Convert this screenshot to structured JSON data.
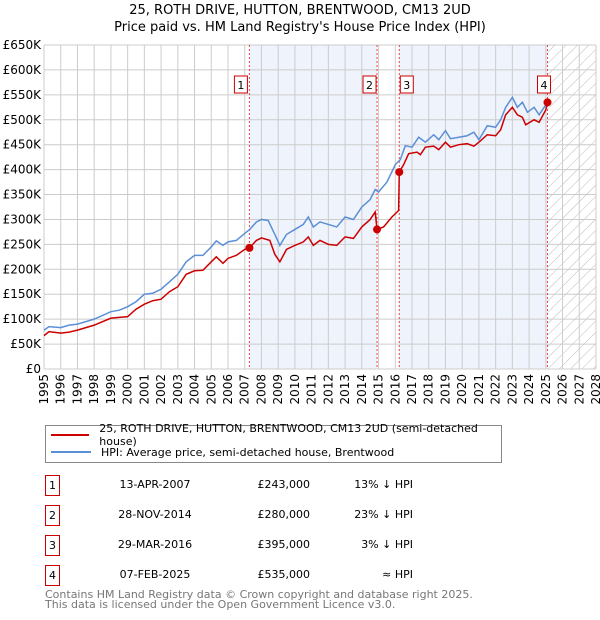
{
  "chart_data": {
    "type": "line",
    "title": "25, ROTH DRIVE, HUTTON, BRENTWOOD, CM13 2UD",
    "subtitle": "Price paid vs. HM Land Registry's House Price Index (HPI)",
    "xlim": [
      1995,
      2028
    ],
    "ylim": [
      0,
      650000
    ],
    "yticks": [
      0,
      50000,
      100000,
      150000,
      200000,
      250000,
      300000,
      350000,
      400000,
      450000,
      500000,
      550000,
      600000,
      650000
    ],
    "ytick_labels": [
      "£0",
      "£50K",
      "£100K",
      "£150K",
      "£200K",
      "£250K",
      "£300K",
      "£350K",
      "£400K",
      "£450K",
      "£500K",
      "£550K",
      "£600K",
      "£650K"
    ],
    "xtick_labels": [
      "1995",
      "1996",
      "1997",
      "1998",
      "1999",
      "2000",
      "2001",
      "2002",
      "2003",
      "2004",
      "2005",
      "2006",
      "2007",
      "2008",
      "2009",
      "2010",
      "2011",
      "2012",
      "2013",
      "2014",
      "2015",
      "2016",
      "2017",
      "2018",
      "2019",
      "2020",
      "2021",
      "2022",
      "2023",
      "2024",
      "2025",
      "2026",
      "2027",
      "2028"
    ],
    "grid": true,
    "shaded_periods": [
      [
        2007.28,
        2014.91
      ],
      [
        2016.24,
        2025.1
      ]
    ],
    "forecast_hatch_from": 2025.1,
    "series": [
      {
        "name": "25, ROTH DRIVE, HUTTON, BRENTWOOD, CM13 2UD (semi-detached house)",
        "color": "#cc0000",
        "x": [
          1995,
          1995.3,
          1996,
          1996.5,
          1997,
          1998,
          1999,
          2000,
          2000.5,
          2001,
          2001.5,
          2002,
          2002.5,
          2003,
          2003.5,
          2004,
          2004.5,
          2005,
          2005.3,
          2005.7,
          2006,
          2006.5,
          2007,
          2007.28,
          2007.7,
          2008,
          2008.5,
          2008.8,
          2009.1,
          2009.5,
          2010,
          2010.5,
          2010.8,
          2011.1,
          2011.5,
          2012,
          2012.5,
          2013,
          2013.5,
          2014,
          2014.5,
          2014.8,
          2014.91,
          2015.3,
          2015.8,
          2016.2,
          2016.24,
          2016.5,
          2016.8,
          2017.3,
          2017.5,
          2017.8,
          2018.3,
          2018.6,
          2019,
          2019.3,
          2019.8,
          2020.3,
          2020.7,
          2021,
          2021.5,
          2022,
          2022.3,
          2022.6,
          2023,
          2023.3,
          2023.6,
          2023.8,
          2024.3,
          2024.6,
          2025,
          2025.1
        ],
        "y": [
          67000,
          75000,
          72000,
          74000,
          78000,
          88000,
          102000,
          105000,
          120000,
          130000,
          137000,
          140000,
          155000,
          165000,
          190000,
          197000,
          198000,
          215000,
          225000,
          212000,
          222000,
          228000,
          240000,
          243000,
          258000,
          263000,
          258000,
          230000,
          215000,
          240000,
          248000,
          255000,
          265000,
          248000,
          258000,
          250000,
          248000,
          265000,
          262000,
          285000,
          300000,
          315000,
          280000,
          285000,
          305000,
          318000,
          395000,
          410000,
          432000,
          435000,
          430000,
          445000,
          447000,
          440000,
          455000,
          445000,
          450000,
          452000,
          447000,
          455000,
          470000,
          468000,
          480000,
          510000,
          525000,
          510000,
          505000,
          490000,
          500000,
          495000,
          520000,
          535000
        ]
      },
      {
        "name": "HPI: Average price, semi-detached house, Brentwood",
        "color": "#5b8fd6",
        "x": [
          1995,
          1995.3,
          1996,
          1996.5,
          1997,
          1998,
          1999,
          1999.5,
          2000,
          2000.5,
          2001,
          2001.5,
          2002,
          2002.5,
          2003,
          2003.5,
          2004,
          2004.5,
          2005,
          2005.3,
          2005.7,
          2006,
          2006.5,
          2007,
          2007.3,
          2007.7,
          2008,
          2008.4,
          2008.8,
          2009.1,
          2009.5,
          2010,
          2010.5,
          2010.8,
          2011.1,
          2011.5,
          2012,
          2012.5,
          2013,
          2013.5,
          2014,
          2014.5,
          2014.8,
          2015,
          2015.5,
          2016,
          2016.3,
          2016.6,
          2017,
          2017.4,
          2017.8,
          2018.3,
          2018.6,
          2019,
          2019.3,
          2019.8,
          2020.3,
          2020.7,
          2021,
          2021.5,
          2022,
          2022.3,
          2022.6,
          2023,
          2023.3,
          2023.6,
          2023.9,
          2024.3,
          2024.6,
          2025,
          2025.1
        ],
        "y": [
          78000,
          85000,
          83000,
          88000,
          90000,
          100000,
          115000,
          118000,
          125000,
          135000,
          150000,
          152000,
          160000,
          175000,
          190000,
          215000,
          228000,
          228000,
          245000,
          257000,
          248000,
          255000,
          258000,
          272000,
          280000,
          295000,
          300000,
          298000,
          270000,
          248000,
          270000,
          280000,
          290000,
          305000,
          285000,
          295000,
          290000,
          285000,
          305000,
          300000,
          325000,
          340000,
          360000,
          355000,
          375000,
          410000,
          420000,
          448000,
          445000,
          465000,
          455000,
          470000,
          460000,
          478000,
          462000,
          465000,
          468000,
          475000,
          460000,
          488000,
          485000,
          500000,
          525000,
          545000,
          525000,
          535000,
          515000,
          525000,
          510000,
          530000,
          540000
        ]
      }
    ],
    "sales": [
      {
        "n": "1",
        "x": 2007.28,
        "price": 243000
      },
      {
        "n": "2",
        "x": 2014.91,
        "price": 280000
      },
      {
        "n": "3",
        "x": 2016.24,
        "price": 395000
      },
      {
        "n": "4",
        "x": 2025.1,
        "price": 535000
      }
    ]
  },
  "legend": {
    "property": "25, ROTH DRIVE, HUTTON, BRENTWOOD, CM13 2UD (semi-detached house)",
    "hpi": "HPI: Average price, semi-detached house, Brentwood"
  },
  "table": [
    {
      "n": "1",
      "date": "13-APR-2007",
      "price": "£243,000",
      "hpi": "13% ↓ HPI"
    },
    {
      "n": "2",
      "date": "28-NOV-2014",
      "price": "£280,000",
      "hpi": "23% ↓ HPI"
    },
    {
      "n": "3",
      "date": "29-MAR-2016",
      "price": "£395,000",
      "hpi": "3% ↓ HPI"
    },
    {
      "n": "4",
      "date": "07-FEB-2025",
      "price": "£535,000",
      "hpi": "≈ HPI"
    }
  ],
  "footer": {
    "line1": "Contains HM Land Registry data © Crown copyright and database right 2025.",
    "line2": "This data is licensed under the Open Government Licence v3.0."
  }
}
